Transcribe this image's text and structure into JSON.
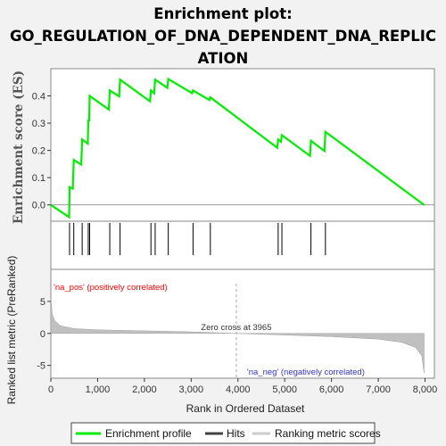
{
  "title_lines": [
    "Enrichment plot:",
    "GO_REGULATION_OF_DNA_DEPENDENT_DNA_REPLIC",
    "ATION"
  ],
  "chart_data": {
    "type": "line",
    "title": "Enrichment plot: GO_REGULATION_OF_DNA_DEPENDENT_DNA_REPLICATION",
    "xlabel": "Rank in Ordered Dataset",
    "xlim": [
      0,
      8200
    ],
    "x_ticks": [
      0,
      1000,
      2000,
      3000,
      4000,
      5000,
      6000,
      7000,
      8000
    ],
    "x_tick_labels": [
      "0",
      "1,000",
      "2,000",
      "3,000",
      "4,000",
      "5,000",
      "6,000",
      "7,000",
      "8,000"
    ],
    "es_panel": {
      "ylabel": "Enrichment score (ES)",
      "ylim": [
        -0.06,
        0.5
      ],
      "y_ticks": [
        0.0,
        0.1,
        0.2,
        0.3,
        0.4
      ],
      "y_tick_labels": [
        "0.0",
        "0.1",
        "0.2",
        "0.3",
        "0.4"
      ],
      "series": [
        {
          "name": "Enrichment profile",
          "color": "#00ee00",
          "points": [
            [
              0,
              0.0
            ],
            [
              390,
              -0.045
            ],
            [
              400,
              0.065
            ],
            [
              470,
              0.06
            ],
            [
              490,
              0.165
            ],
            [
              650,
              0.148
            ],
            [
              670,
              0.24
            ],
            [
              790,
              0.225
            ],
            [
              800,
              0.31
            ],
            [
              820,
              0.31
            ],
            [
              830,
              0.4
            ],
            [
              1240,
              0.35
            ],
            [
              1260,
              0.42
            ],
            [
              1460,
              0.398
            ],
            [
              1480,
              0.46
            ],
            [
              2120,
              0.38
            ],
            [
              2140,
              0.42
            ],
            [
              2210,
              0.41
            ],
            [
              2230,
              0.46
            ],
            [
              2490,
              0.43
            ],
            [
              2510,
              0.462
            ],
            [
              3020,
              0.41
            ],
            [
              3040,
              0.42
            ],
            [
              3390,
              0.385
            ],
            [
              3410,
              0.395
            ],
            [
              4840,
              0.21
            ],
            [
              4860,
              0.24
            ],
            [
              4920,
              0.232
            ],
            [
              4940,
              0.256
            ],
            [
              5540,
              0.18
            ],
            [
              5560,
              0.235
            ],
            [
              5850,
              0.198
            ],
            [
              5870,
              0.268
            ],
            [
              7980,
              0.0
            ]
          ]
        }
      ],
      "zero_line": 0.0
    },
    "hits": {
      "name": "Hits",
      "positions": [
        400,
        490,
        670,
        800,
        830,
        1260,
        1480,
        2140,
        2230,
        2510,
        3040,
        3410,
        4860,
        4940,
        5560,
        5870
      ]
    },
    "ranking_panel": {
      "ylabel": "Ranked list metric (PreRanked)",
      "ylim": [
        -7,
        10
      ],
      "y_ticks": [
        -5,
        0,
        5
      ],
      "y_tick_labels": [
        "-5",
        "0",
        "5"
      ],
      "series_name": "Ranking metric scores",
      "profile": [
        [
          0,
          5.5
        ],
        [
          30,
          3.0
        ],
        [
          80,
          2.0
        ],
        [
          200,
          1.2
        ],
        [
          500,
          0.75
        ],
        [
          1000,
          0.55
        ],
        [
          2000,
          0.4
        ],
        [
          3000,
          0.25
        ],
        [
          3965,
          0.0
        ],
        [
          5000,
          -0.25
        ],
        [
          6000,
          -0.5
        ],
        [
          7000,
          -0.9
        ],
        [
          7500,
          -1.4
        ],
        [
          7800,
          -2.2
        ],
        [
          7930,
          -3.5
        ],
        [
          7980,
          -6.2
        ]
      ],
      "zero_cross": 3965,
      "zero_cross_label": "Zero cross at 3965",
      "pos_label": "'na_pos' (positively correlated)",
      "neg_label": "'na_neg' (negatively correlated)",
      "pos_color": "#ff0000",
      "neg_color": "#3333cc"
    },
    "color_bar": {
      "segments": [
        {
          "to": 1300,
          "color": "#ff2b2b"
        },
        {
          "to": 2000,
          "color": "#ff6060"
        },
        {
          "to": 2600,
          "color": "#ff8c8c"
        },
        {
          "to": 3000,
          "color": "#ffb0b0"
        },
        {
          "to": 3450,
          "color": "#ffc4e8"
        },
        {
          "to": 3965,
          "color": "#ffd2ee"
        },
        {
          "to": 4700,
          "color": "#d8d8f8"
        },
        {
          "to": 5900,
          "color": "#c2c2f4"
        },
        {
          "to": 6450,
          "color": "#8080f0"
        },
        {
          "to": 7650,
          "color": "#5050e8"
        },
        {
          "to": 7980,
          "color": "#1a00c8"
        }
      ]
    },
    "legend": [
      "Enrichment profile",
      "Hits",
      "Ranking metric scores"
    ]
  }
}
